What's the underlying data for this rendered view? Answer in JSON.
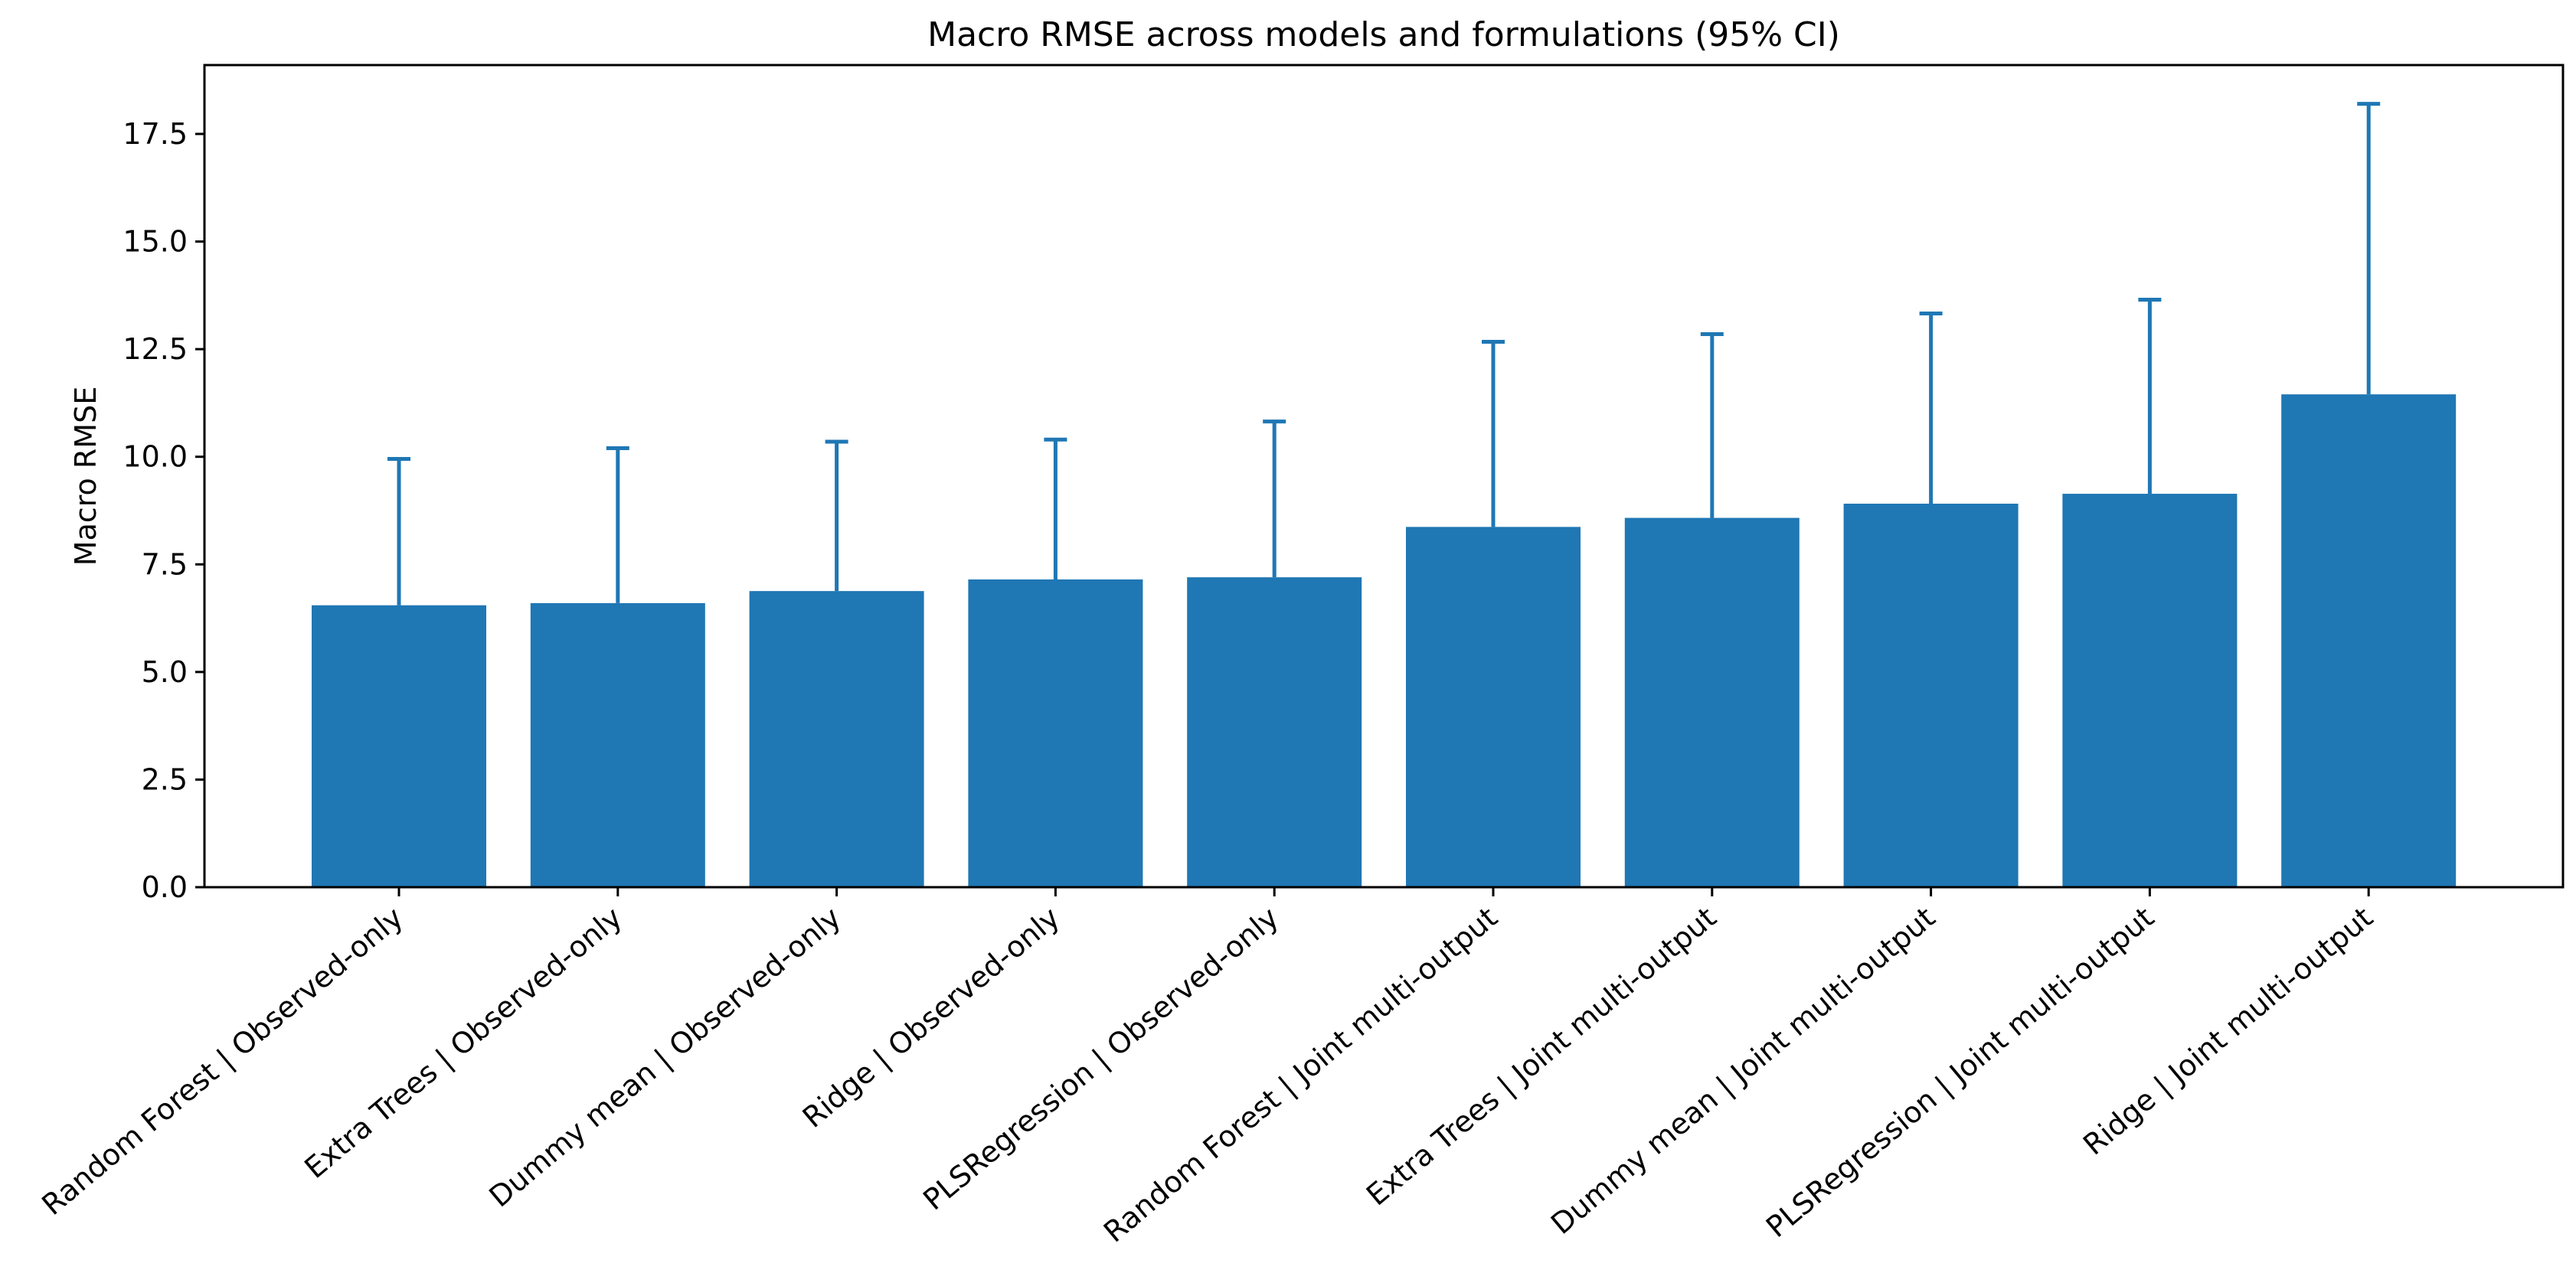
{
  "chart_data": {
    "type": "bar",
    "title": "Macro RMSE across models and formulations (95% CI)",
    "xlabel": "",
    "ylabel": "Macro RMSE",
    "ylim": [
      0,
      19.1
    ],
    "yticks": [
      "0.0",
      "2.5",
      "5.0",
      "7.5",
      "10.0",
      "12.5",
      "15.0",
      "17.5"
    ],
    "ytick_values": [
      0,
      2.5,
      5,
      7.5,
      10,
      12.5,
      15,
      17.5
    ],
    "categories": [
      "Random Forest | Observed-only",
      "Extra Trees | Observed-only",
      "Dummy mean | Observed-only",
      "Ridge | Observed-only",
      "PLSRegression | Observed-only",
      "Random Forest | Joint multi-output",
      "Extra Trees | Joint multi-output",
      "Dummy mean | Joint multi-output",
      "PLSRegression | Joint multi-output",
      "Ridge | Joint multi-output"
    ],
    "values": [
      6.55,
      6.6,
      6.88,
      7.15,
      7.2,
      8.37,
      8.58,
      8.91,
      9.14,
      11.45
    ],
    "ci_upper": [
      9.95,
      10.2,
      10.35,
      10.4,
      10.82,
      12.67,
      12.85,
      13.33,
      13.65,
      18.2
    ],
    "bar_color": "#1f77b4",
    "grid": false,
    "legend": "none"
  }
}
